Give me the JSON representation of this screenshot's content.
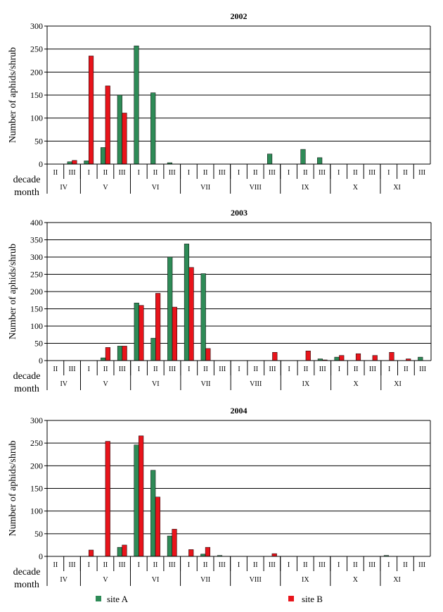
{
  "legend": {
    "placement": "bottom",
    "items": [
      {
        "label": "site A",
        "color": "#2e8b57"
      },
      {
        "label": "site B",
        "color": "#e8141b"
      }
    ]
  },
  "colors": {
    "siteA": "#2e8b57",
    "siteB": "#e8141b",
    "grid": "#000000"
  },
  "decades": [
    "II",
    "III",
    "I",
    "II",
    "III",
    "I",
    "II",
    "III",
    "I",
    "II",
    "III",
    "I",
    "II",
    "III",
    "I",
    "II",
    "III",
    "I",
    "II",
    "III",
    "I",
    "II",
    "III"
  ],
  "months": [
    {
      "label": "IV",
      "span": 2
    },
    {
      "label": "V",
      "span": 3
    },
    {
      "label": "VI",
      "span": 3
    },
    {
      "label": "VII",
      "span": 3
    },
    {
      "label": "VIII",
      "span": 3
    },
    {
      "label": "IX",
      "span": 3
    },
    {
      "label": "X",
      "span": 3
    },
    {
      "label": "XI",
      "span": 2
    }
  ],
  "chart_data": [
    {
      "type": "bar",
      "title": "2002",
      "ylabel": "Number of aphids/shrub",
      "row_labels": [
        "decade",
        "month"
      ],
      "ylim": [
        0,
        300
      ],
      "yticks": [
        0,
        50,
        100,
        150,
        200,
        250,
        300
      ],
      "grid": true,
      "series": [
        {
          "name": "site A",
          "values": [
            0,
            5,
            7,
            36,
            150,
            257,
            155,
            3,
            0,
            0,
            0,
            0,
            0,
            22,
            0,
            32,
            14,
            0,
            0,
            0,
            0,
            0,
            0
          ]
        },
        {
          "name": "site B",
          "values": [
            0,
            8,
            235,
            170,
            111,
            0,
            0,
            0,
            0,
            0,
            0,
            0,
            0,
            0,
            0,
            0,
            0,
            0,
            0,
            0,
            0,
            0,
            0
          ]
        }
      ]
    },
    {
      "type": "bar",
      "title": "2003",
      "ylabel": "Number of aphids/shrub",
      "row_labels": [
        "decade",
        "month"
      ],
      "ylim": [
        0,
        400
      ],
      "yticks": [
        0,
        50,
        100,
        150,
        200,
        250,
        300,
        350,
        400
      ],
      "grid": true,
      "series": [
        {
          "name": "site A",
          "values": [
            0,
            0,
            0,
            8,
            42,
            167,
            65,
            300,
            338,
            252,
            0,
            0,
            0,
            0,
            0,
            0,
            5,
            10,
            0,
            0,
            0,
            0,
            10
          ]
        },
        {
          "name": "site B",
          "values": [
            0,
            0,
            0,
            38,
            42,
            160,
            195,
            155,
            270,
            35,
            0,
            0,
            0,
            24,
            0,
            28,
            2,
            15,
            20,
            15,
            24,
            5,
            0
          ]
        }
      ]
    },
    {
      "type": "bar",
      "title": "2004",
      "ylabel": "Number of aphids/shrub",
      "row_labels": [
        "decade",
        "month"
      ],
      "ylim": [
        0,
        300
      ],
      "yticks": [
        0,
        50,
        100,
        150,
        200,
        250,
        300
      ],
      "grid": true,
      "series": [
        {
          "name": "site A",
          "values": [
            0,
            0,
            0,
            0,
            20,
            246,
            190,
            45,
            0,
            5,
            2,
            0,
            0,
            0,
            0,
            0,
            0,
            0,
            0,
            0,
            2,
            0,
            0
          ]
        },
        {
          "name": "site B",
          "values": [
            0,
            0,
            14,
            254,
            25,
            266,
            131,
            60,
            15,
            20,
            0,
            0,
            0,
            6,
            0,
            0,
            0,
            0,
            0,
            0,
            0,
            0,
            0
          ]
        }
      ]
    }
  ]
}
